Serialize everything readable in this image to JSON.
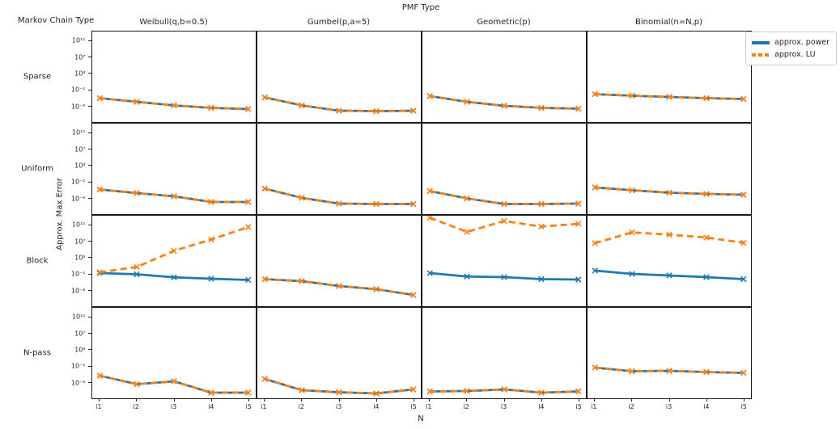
{
  "figure": {
    "title": "PMF Type",
    "row_axis_title": "Markov Chain Type",
    "x_axis_label": "N",
    "y_axis_label": "Approx. Max Error"
  },
  "legend": {
    "items": [
      {
        "label": "approx. power",
        "color": "#1f77b4",
        "dashed": false
      },
      {
        "label": "approx. LU",
        "color": "#ff7f0e",
        "dashed": true
      }
    ]
  },
  "chart_data": {
    "type": "line",
    "layout": "4x4 small multiples, shared log y-axis",
    "title": "PMF Type",
    "xlabel": "N",
    "ylabel": "Approx. Max Error",
    "row_axis_title": "Markov Chain Type",
    "cols": [
      "Weibull(q,b=0.5)",
      "Gumbel(p,a=5)",
      "Geometric(p)",
      "Binomial(n=N,p)"
    ],
    "rows": [
      "Sparse",
      "Uniform",
      "Block",
      "N-pass"
    ],
    "x_categories": [
      "i1",
      "i2",
      "i3",
      "i4",
      "i5"
    ],
    "y_scale": "log10",
    "y_tick_labels": [
      "10¹¹",
      "10⁷",
      "10³",
      "10⁻¹",
      "10⁻⁵"
    ],
    "y_tick_exponents": [
      11,
      7,
      3,
      -1,
      -5
    ],
    "ylim_exponents": [
      -8.9,
      13.5
    ],
    "legend_entries": [
      "approx. power",
      "approx. LU"
    ],
    "legend_position": "upper right, outside axes",
    "grid": "off",
    "series_log10": [
      {
        "row": "Sparse",
        "cells": [
          {
            "col": "Weibull(q,b=0.5)",
            "power": [
              -3.0,
              -3.9,
              -4.8,
              -5.4,
              -5.7
            ],
            "lu": [
              -3.0,
              -3.9,
              -4.8,
              -5.4,
              -5.7
            ]
          },
          {
            "col": "Gumbel(p,a=5)",
            "power": [
              -2.8,
              -4.8,
              -6.1,
              -6.2,
              -6.1
            ],
            "lu": [
              -2.8,
              -4.8,
              -6.1,
              -6.2,
              -6.1
            ]
          },
          {
            "col": "Geometric(p)",
            "power": [
              -2.5,
              -3.9,
              -4.9,
              -5.4,
              -5.6
            ],
            "lu": [
              -2.5,
              -3.9,
              -4.9,
              -5.4,
              -5.6
            ]
          },
          {
            "col": "Binomial(n=N,p)",
            "power": [
              -2.0,
              -2.4,
              -2.7,
              -3.0,
              -3.2
            ],
            "lu": [
              -2.0,
              -2.4,
              -2.7,
              -3.0,
              -3.2
            ]
          }
        ]
      },
      {
        "row": "Uniform",
        "cells": [
          {
            "col": "Weibull(q,b=0.5)",
            "power": [
              -2.8,
              -3.7,
              -4.5,
              -5.9,
              -5.9
            ],
            "lu": [
              -2.8,
              -3.7,
              -4.5,
              -5.9,
              -5.9
            ]
          },
          {
            "col": "Gumbel(p,a=5)",
            "power": [
              -2.6,
              -4.9,
              -6.3,
              -6.4,
              -6.4
            ],
            "lu": [
              -2.6,
              -4.9,
              -6.3,
              -6.4,
              -6.4
            ]
          },
          {
            "col": "Geometric(p)",
            "power": [
              -3.2,
              -5.0,
              -6.4,
              -6.4,
              -6.3
            ],
            "lu": [
              -3.2,
              -5.0,
              -6.4,
              -6.4,
              -6.3
            ]
          },
          {
            "col": "Binomial(n=N,p)",
            "power": [
              -2.3,
              -3.0,
              -3.6,
              -3.9,
              -4.1
            ],
            "lu": [
              -2.3,
              -3.0,
              -3.6,
              -3.9,
              -4.1
            ]
          }
        ]
      },
      {
        "row": "Block",
        "cells": [
          {
            "col": "Weibull(q,b=0.5)",
            "power": [
              -0.7,
              -1.0,
              -1.75,
              -2.1,
              -2.4
            ],
            "lu": [
              -0.5,
              0.8,
              4.8,
              7.6,
              10.7
            ]
          },
          {
            "col": "Gumbel(p,a=5)",
            "power": [
              -2.2,
              -2.7,
              -3.9,
              -4.7,
              -6.1
            ],
            "lu": [
              -2.2,
              -2.7,
              -3.9,
              -4.7,
              -6.1
            ]
          },
          {
            "col": "Geometric(p)",
            "power": [
              -0.7,
              -1.55,
              -1.7,
              -2.2,
              -2.3
            ],
            "lu": [
              13.0,
              9.5,
              12.2,
              10.8,
              11.5
            ]
          },
          {
            "col": "Binomial(n=N,p)",
            "power": [
              -0.1,
              -0.9,
              -1.3,
              -1.7,
              -2.2
            ],
            "lu": [
              6.7,
              9.4,
              8.8,
              8.1,
              6.8
            ]
          }
        ]
      },
      {
        "row": "N-pass",
        "cells": [
          {
            "col": "Weibull(q,b=0.5)",
            "power": [
              -3.3,
              -5.4,
              -4.7,
              -7.5,
              -7.5
            ],
            "lu": [
              -3.3,
              -5.4,
              -4.7,
              -7.5,
              -7.5
            ]
          },
          {
            "col": "Gumbel(p,a=5)",
            "power": [
              -4.1,
              -6.9,
              -7.4,
              -7.7,
              -6.7
            ],
            "lu": [
              -4.1,
              -6.9,
              -7.4,
              -7.7,
              -6.7
            ]
          },
          {
            "col": "Geometric(p)",
            "power": [
              -7.2,
              -7.1,
              -6.7,
              -7.5,
              -7.2
            ],
            "lu": [
              -7.2,
              -7.1,
              -6.7,
              -7.5,
              -7.2
            ]
          },
          {
            "col": "Binomial(n=N,p)",
            "power": [
              -1.3,
              -2.2,
              -2.1,
              -2.4,
              -2.6
            ],
            "lu": [
              -1.3,
              -2.2,
              -2.1,
              -2.4,
              -2.6
            ]
          }
        ]
      }
    ],
    "colors": {
      "power": "#1f77b4",
      "lu": "#ff7f0e"
    }
  }
}
